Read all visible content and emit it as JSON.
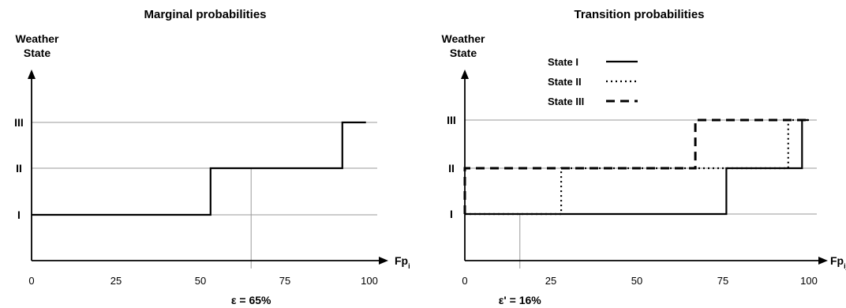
{
  "chart_data": [
    {
      "type": "line",
      "title": "Marginal probabilities",
      "ylabel": [
        "Weather",
        "State"
      ],
      "xlabel": {
        "main": "Fp",
        "sub": "i"
      },
      "xlim": [
        0,
        100
      ],
      "xticks": [
        0,
        25,
        50,
        75,
        100
      ],
      "xtick_labels": [
        "0",
        "25",
        "50",
        "75",
        "100"
      ],
      "yticks": [
        1,
        2,
        3
      ],
      "ytick_labels": [
        "I",
        "II",
        "III"
      ],
      "grid": "horizontal",
      "series": [
        {
          "style": "solid",
          "x": [
            0,
            53,
            53,
            92,
            92,
            99
          ],
          "y": [
            1,
            1,
            2,
            2,
            3,
            3
          ]
        }
      ],
      "annotation": {
        "x": 65,
        "label": "ε = 65%"
      }
    },
    {
      "type": "line",
      "title": "Transition probabilities",
      "ylabel": [
        "Weather",
        "State"
      ],
      "xlabel": {
        "main": "Fp",
        "sub": "ij"
      },
      "xlim": [
        0,
        100
      ],
      "xticks": [
        0,
        25,
        50,
        75,
        100
      ],
      "xtick_labels": [
        "0",
        "25",
        "50",
        "75",
        "100"
      ],
      "yticks": [
        1,
        2,
        3
      ],
      "ytick_labels": [
        "I",
        "II",
        "III"
      ],
      "grid": "horizontal",
      "legend": {
        "placement": "top-left"
      },
      "series": [
        {
          "name": "State I",
          "style": "solid",
          "x": [
            0,
            76,
            76,
            98,
            98,
            100
          ],
          "y": [
            1,
            1,
            2,
            2,
            3,
            3
          ]
        },
        {
          "name": "State II",
          "style": "dotted",
          "x": [
            0,
            28,
            28,
            94,
            94,
            100
          ],
          "y": [
            1,
            1,
            2,
            2,
            3,
            3
          ]
        },
        {
          "name": "State III",
          "style": "dashed",
          "x": [
            0,
            0,
            67,
            67,
            100
          ],
          "y": [
            1,
            2,
            2,
            3,
            3
          ]
        }
      ],
      "annotation": {
        "x": 16,
        "label": "ε' = 16%"
      }
    }
  ]
}
